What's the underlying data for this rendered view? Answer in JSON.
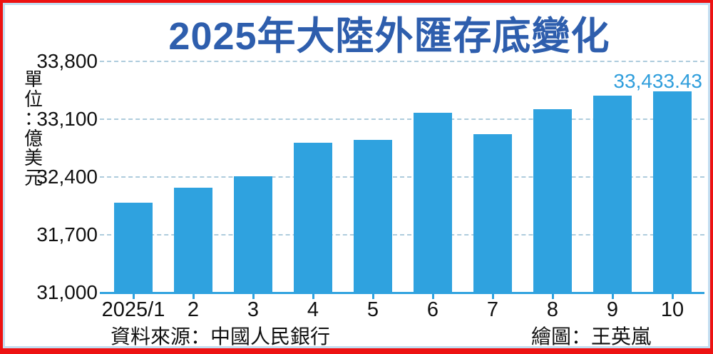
{
  "title": {
    "text": "2025年大陸外匯存底變化",
    "color": "#2E5EAD"
  },
  "y_axis": {
    "unit_label": "單位：億美元",
    "unit_chars": [
      "單",
      "位",
      "：",
      "億",
      "美",
      "元"
    ],
    "ticks": [
      {
        "value": 33800,
        "label": "33,800"
      },
      {
        "value": 33100,
        "label": "33,100"
      },
      {
        "value": 32400,
        "label": "32,400"
      },
      {
        "value": 31700,
        "label": "31,700"
      },
      {
        "value": 31000,
        "label": "31,000"
      }
    ]
  },
  "footer": {
    "source": "資料來源：中國人民銀行",
    "credit": "繪圖：王英嵐"
  },
  "colors": {
    "bar": "#2FA2DF",
    "title_blue": "#2E5EAD",
    "value_label_blue": "#2F9EDC",
    "grid": "#AECCDD",
    "frame_red": "#ED1212",
    "inner_border_blue": "#C3DDF0"
  },
  "chart_data": {
    "type": "bar",
    "title": "2025年大陸外匯存底變化",
    "ylabel": "單位：億美元",
    "xlabel": "",
    "categories": [
      "2025/1",
      "2",
      "3",
      "4",
      "5",
      "6",
      "7",
      "8",
      "9",
      "10"
    ],
    "values": [
      32090,
      32272,
      32407,
      32817,
      32853,
      33174,
      32922,
      33222,
      33387,
      33433.43
    ],
    "ylim": [
      31000,
      33800
    ],
    "ytick_step": 700,
    "grid": "horizontal-dashed",
    "legend": "none",
    "bar_color": "#2FA2DF",
    "value_label": {
      "index": 9,
      "text": "33,433.43"
    },
    "source": "資料來源：中國人民銀行",
    "credit": "繪圖：王英嵐"
  }
}
